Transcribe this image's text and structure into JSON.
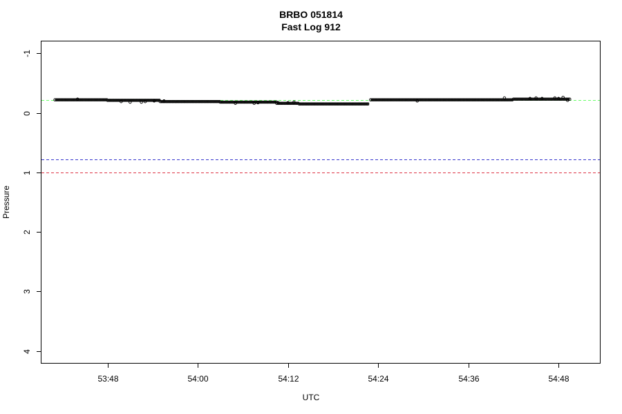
{
  "chart_data": {
    "type": "scatter",
    "title": "BRBO 051814",
    "subtitle": "Fast Log 912",
    "xlabel": "UTC",
    "ylabel": "Pressure",
    "x_tick_labels": [
      "53:48",
      "54:00",
      "54:12",
      "54:24",
      "54:36",
      "54:48"
    ],
    "x_tick_seconds": [
      3228,
      3240,
      3252,
      3264,
      3276,
      3288
    ],
    "xlim_seconds": [
      3219.2,
      3293.5
    ],
    "y_ticks": [
      -1,
      0,
      1,
      2,
      3,
      4
    ],
    "ylim": [
      4.2,
      -1.2
    ],
    "y_reversed": true,
    "grid": false,
    "reference_lines": [
      {
        "y": -0.22,
        "color": "#66ff66",
        "style": "dashed"
      },
      {
        "y": 0.78,
        "color": "#3333cc",
        "style": "dashed"
      },
      {
        "y": 1.0,
        "color": "#dd3344",
        "style": "dashed"
      }
    ],
    "series": [
      {
        "marker": "open-circle",
        "color": "#000000",
        "segments": [
          {
            "x_start": 3221.0,
            "x_end": 3228.0,
            "y": -0.22
          },
          {
            "x_start": 3228.0,
            "x_end": 3235.0,
            "y": -0.21
          },
          {
            "x_start": 3235.0,
            "x_end": 3243.0,
            "y": -0.19
          },
          {
            "x_start": 3243.0,
            "x_end": 3250.5,
            "y": -0.18
          },
          {
            "x_start": 3250.5,
            "x_end": 3253.5,
            "y": -0.16
          },
          {
            "x_start": 3253.5,
            "x_end": 3262.8,
            "y": -0.15
          },
          {
            "x_start": 3263.0,
            "x_end": 3282.0,
            "y": -0.22
          },
          {
            "x_start": 3282.0,
            "x_end": 3289.5,
            "y": -0.23
          }
        ],
        "outliers": [
          {
            "x": 3224.0,
            "y": -0.23
          },
          {
            "x": 3229.8,
            "y": -0.19
          },
          {
            "x": 3231.0,
            "y": -0.18
          },
          {
            "x": 3232.5,
            "y": -0.18
          },
          {
            "x": 3233.0,
            "y": -0.19
          },
          {
            "x": 3234.2,
            "y": -0.2
          },
          {
            "x": 3235.5,
            "y": -0.2
          },
          {
            "x": 3245.0,
            "y": -0.16
          },
          {
            "x": 3247.5,
            "y": -0.16
          },
          {
            "x": 3248.0,
            "y": -0.17
          },
          {
            "x": 3250.7,
            "y": -0.17
          },
          {
            "x": 3252.0,
            "y": -0.17
          },
          {
            "x": 3252.8,
            "y": -0.18
          },
          {
            "x": 3269.2,
            "y": -0.2
          },
          {
            "x": 3280.8,
            "y": -0.25
          },
          {
            "x": 3284.2,
            "y": -0.24
          },
          {
            "x": 3285.0,
            "y": -0.25
          },
          {
            "x": 3285.8,
            "y": -0.24
          },
          {
            "x": 3287.5,
            "y": -0.25
          },
          {
            "x": 3288.0,
            "y": -0.24
          },
          {
            "x": 3288.6,
            "y": -0.26
          },
          {
            "x": 3289.2,
            "y": -0.21
          }
        ]
      }
    ]
  }
}
